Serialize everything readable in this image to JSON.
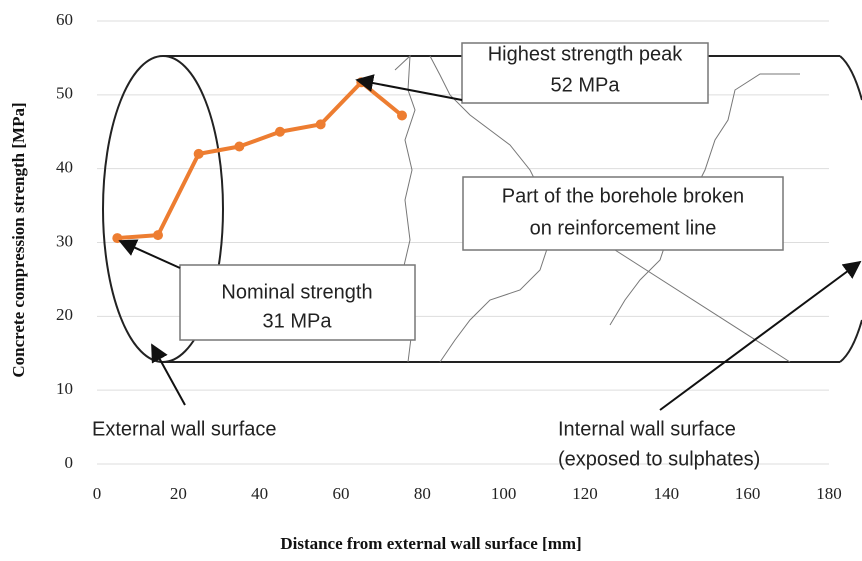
{
  "chart_data": {
    "type": "line",
    "xlabel": "Distance from external wall surface [mm]",
    "ylabel": "Concrete compression strength [MPa]",
    "x": [
      5,
      15,
      25,
      35,
      45,
      55,
      65,
      75
    ],
    "values": [
      30.6,
      31,
      42,
      43,
      45,
      46,
      51.7,
      47.2
    ],
    "color": "#ed7d31",
    "xlim": [
      0,
      180
    ],
    "xticks": [
      0,
      20,
      40,
      60,
      80,
      100,
      120,
      140,
      160,
      180
    ],
    "ylim": [
      0,
      60
    ],
    "yticks": [
      0,
      10,
      20,
      30,
      40,
      50,
      60
    ],
    "grid": true,
    "annotations": [
      {
        "lines": [
          "Highest strength peak",
          "52 MPa"
        ]
      },
      {
        "lines": [
          "Part of the borehole broken",
          "on reinforcement line"
        ]
      },
      {
        "lines": [
          "Nominal strength",
          "31 MPa"
        ]
      },
      {
        "lines": [
          "External wall surface"
        ]
      },
      {
        "lines": [
          "Internal wall surface",
          "(exposed to sulphates)"
        ]
      }
    ]
  }
}
